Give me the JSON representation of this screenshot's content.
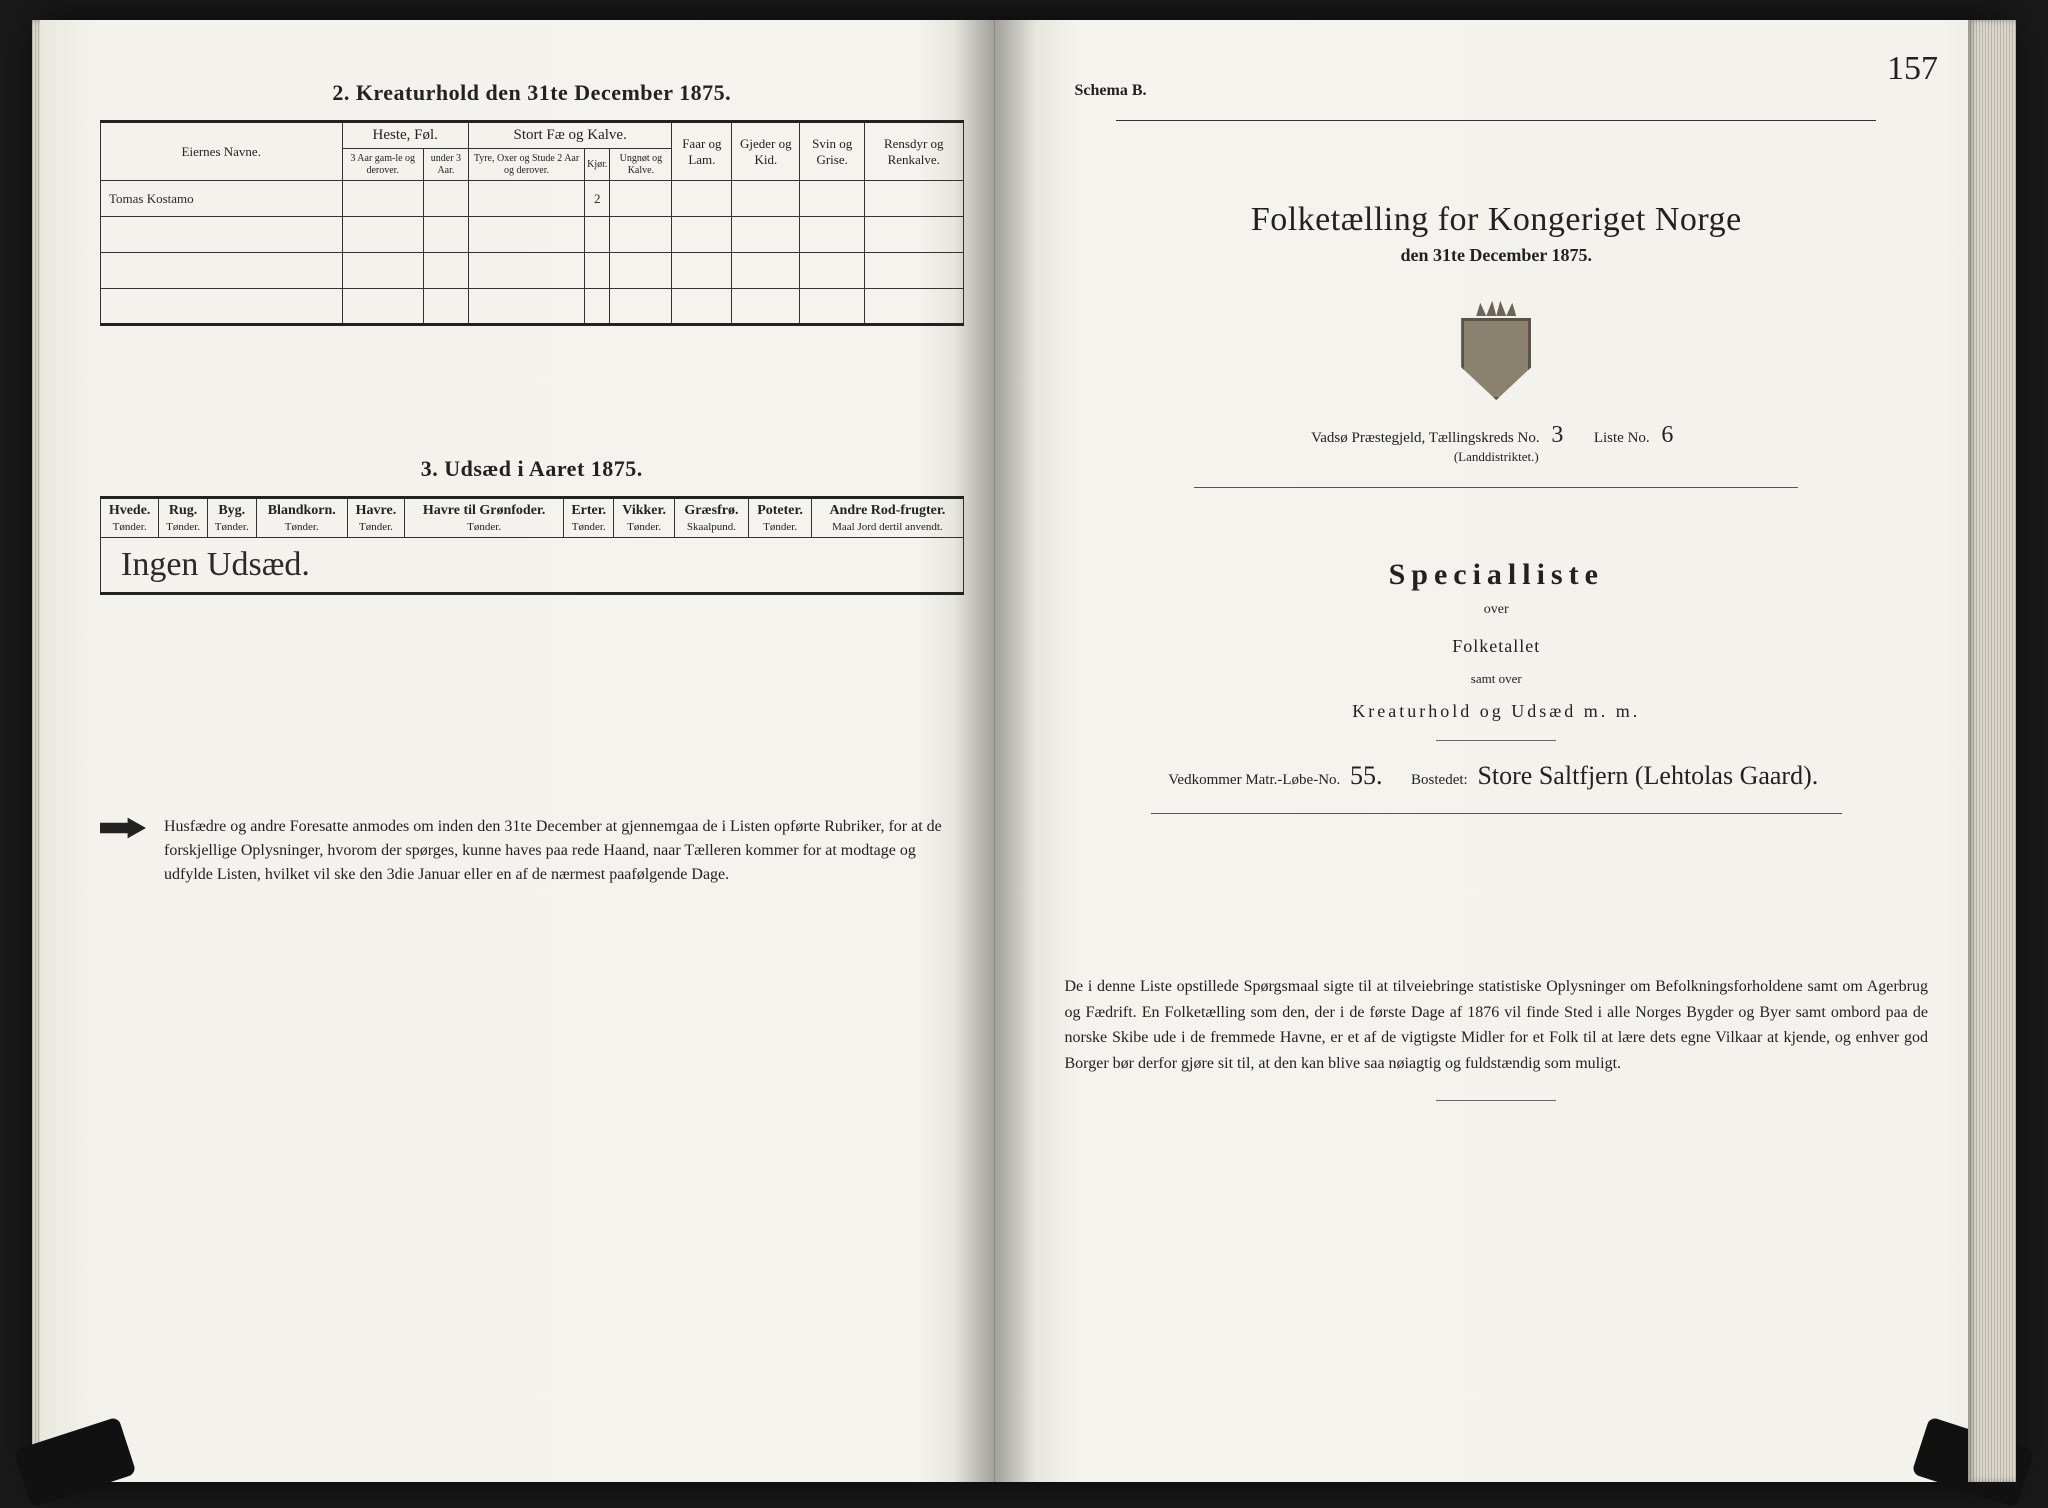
{
  "page_number_right": "157",
  "left": {
    "section2_title": "2.  Kreaturhold den 31te December 1875.",
    "section3_title": "3.  Udsæd i Aaret 1875.",
    "kreatur": {
      "col_eier": "Eiernes Navne.",
      "grp_heste": "Heste, Føl.",
      "heste_sub1": "3 Aar gam-le og derover.",
      "heste_sub2": "under 3 Aar.",
      "grp_stort": "Stort Fæ og Kalve.",
      "stort_sub1": "Tyre, Oxer og Stude 2 Aar og derover.",
      "stort_sub2": "Kjør.",
      "stort_sub3": "Ungnøt og Kalve.",
      "col_faar": "Faar og Lam.",
      "col_gjeder": "Gjeder og Kid.",
      "col_svin": "Svin og Grise.",
      "col_ren": "Rensdyr og Renkalve.",
      "row1_name": "Tomas Kostamo",
      "row1_kjor": "2"
    },
    "udsaed": {
      "cols": [
        {
          "h": "Hvede.",
          "u": "Tønder."
        },
        {
          "h": "Rug.",
          "u": "Tønder."
        },
        {
          "h": "Byg.",
          "u": "Tønder."
        },
        {
          "h": "Blandkorn.",
          "u": "Tønder."
        },
        {
          "h": "Havre.",
          "u": "Tønder."
        },
        {
          "h": "Havre til Grønfoder.",
          "u": "Tønder."
        },
        {
          "h": "Erter.",
          "u": "Tønder."
        },
        {
          "h": "Vikker.",
          "u": "Tønder."
        },
        {
          "h": "Græsfrø.",
          "u": "Skaalpund."
        },
        {
          "h": "Poteter.",
          "u": "Tønder."
        },
        {
          "h": "Andre Rod-frugter.",
          "u": "Maal Jord dertil anvendt."
        }
      ],
      "row_text": "Ingen  Udsæd."
    },
    "footnote": "Husfædre og andre Foresatte anmodes om inden den 31te December at gjennemgaa de i Listen opførte Rubriker, for at de forskjellige Oplysninger, hvorom der spørges, kunne haves paa rede Haand, naar Tælleren kommer for at modtage og udfylde Listen, hvilket vil ske den 3die Januar eller en af de nærmest paafølgende Dage."
  },
  "right": {
    "schema": "Schema B.",
    "title": "Folketælling for Kongeriget Norge",
    "subtitle": "den 31te December 1875.",
    "praestegjeld_lbl": "Vadsø Præstegjeld,   Tællingskreds No.",
    "kreds_no": "3",
    "liste_lbl": "Liste No.",
    "liste_no": "6",
    "land": "(Landdistriktet.)",
    "spec_title": "Specialliste",
    "spec_over": "over",
    "spec_folket": "Folketallet",
    "spec_samt": "samt over",
    "spec_kreat": "Kreaturhold og Udsæd m. m.",
    "matr_lbl": "Vedkommer Matr.-Løbe-No.",
    "matr_no": "55.",
    "bosted_lbl": "Bostedet:",
    "bosted_val": "Store Saltfjern (Lehtolas Gaard).",
    "footnote": "De i denne Liste opstillede Spørgsmaal sigte til at tilveiebringe statistiske Oplysninger om Befolkningsforholdene samt om Agerbrug og Fædrift.  En Folketælling som den, der i de første Dage af 1876 vil finde Sted i alle Norges Bygder og Byer samt ombord paa de norske Skibe ude i de fremmede Havne, er et af de vigtigste Midler for et Folk til at lære dets egne Vilkaar at kjende, og enhver god Borger bør derfor gjøre sit til, at den kan blive saa nøiagtig og fuldstændig som muligt."
  }
}
